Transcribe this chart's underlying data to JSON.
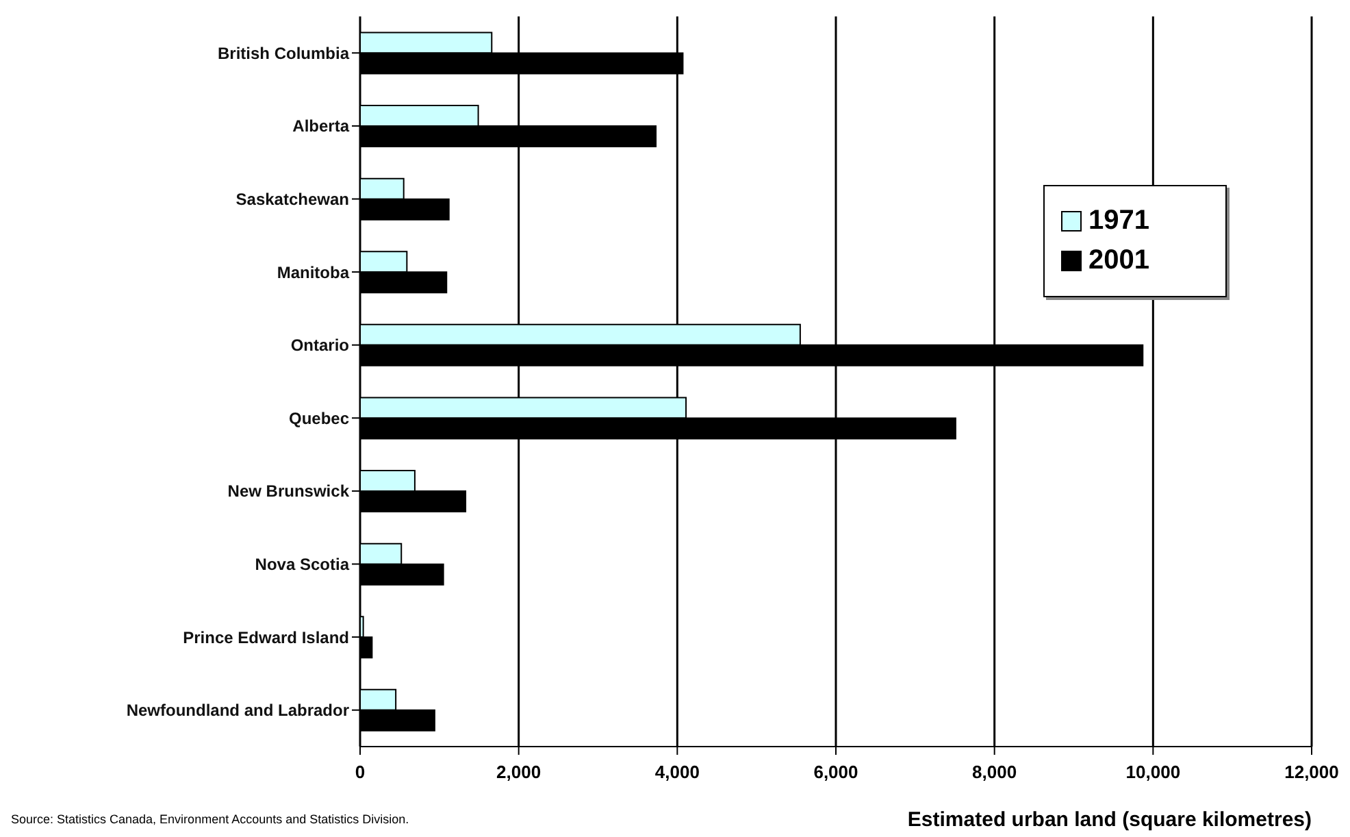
{
  "chart_data": {
    "type": "bar",
    "orientation": "horizontal",
    "xlabel": "Estimated urban land (square kilometres)",
    "categories": [
      "British Columbia",
      "Alberta",
      "Saskatchewan",
      "Manitoba",
      "Ontario",
      "Quebec",
      "New Brunswick",
      "Nova Scotia",
      "Prince Edward Island",
      "Newfoundland and Labrador"
    ],
    "series": [
      {
        "name": "1971",
        "color": "#ccffff",
        "values": [
          1660,
          1490,
          550,
          590,
          5550,
          4110,
          690,
          520,
          40,
          450
        ]
      },
      {
        "name": "2001",
        "color": "#000000",
        "values": [
          4070,
          3730,
          1120,
          1090,
          9870,
          7510,
          1330,
          1050,
          150,
          940
        ]
      }
    ],
    "xlim": [
      0,
      12000
    ],
    "xticks": [
      {
        "value": 0,
        "label": "0"
      },
      {
        "value": 2000,
        "label": "2,000"
      },
      {
        "value": 4000,
        "label": "4,000"
      },
      {
        "value": 6000,
        "label": "6,000"
      },
      {
        "value": 8000,
        "label": "8,000"
      },
      {
        "value": 10000,
        "label": "10,000"
      },
      {
        "value": 12000,
        "label": "12,000"
      }
    ],
    "grid": "x",
    "legend": "right",
    "annotations": [
      "Source: Statistics Canada, Environment Accounts and Statistics Division."
    ]
  }
}
